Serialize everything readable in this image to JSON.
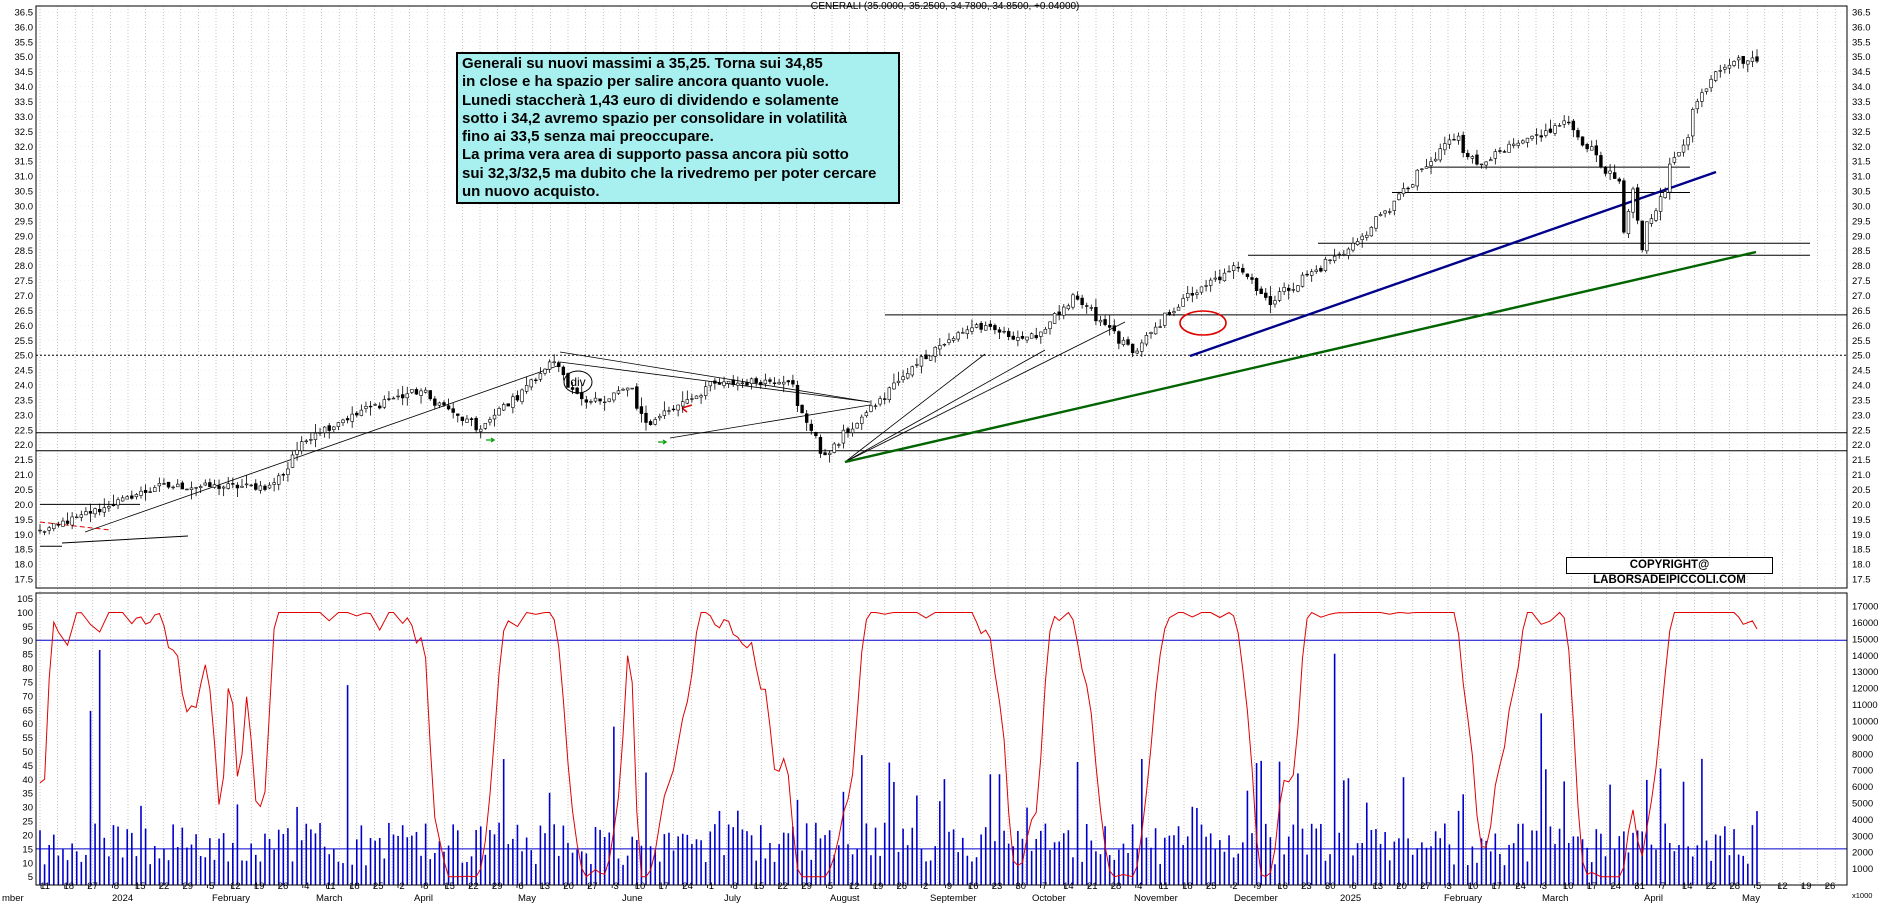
{
  "header_text": "GENERALI (35.0000, 35.2500, 34.7800, 34.8500, +0.04000)",
  "annotation_lines": [
    "Generali su nuovi massimi a 35,25. Torna sui 34,85",
    "in close e ha spazio per salire ancora quanto vuole.",
    "Lunedi staccherà 1,43 euro di dividendo e solamente",
    "sotto i 34,2 avremo spazio per consolidare in volatilità",
    "fino ai 33,5 senza mai preoccupare.",
    "La prima vera area di supporto passa ancora più sotto",
    "sui 32,3/32,5 ma dubito che la rivedremo per poter cercare",
    "un nuovo acquisto."
  ],
  "copyright": "COPYRIGHT@ LABORSADEIPICCOLI.COM",
  "div_label": "div",
  "colors": {
    "up_candle": "#000000",
    "down_candle": "#000000",
    "oscillator": "#e00000",
    "volume": "#0000cc",
    "trend_blue": "#00008b",
    "trend_green": "#006400",
    "grid": "#a0a0a0",
    "annotation_bg": "#a8f0f0"
  },
  "chart_data": {
    "type": "candlestick",
    "price_axis": {
      "ticks": [
        "36.5",
        "36.0",
        "35.5",
        "35.0",
        "34.5",
        "34.0",
        "33.5",
        "33.0",
        "32.5",
        "32.0",
        "31.5",
        "31.0",
        "30.5",
        "30.0",
        "29.5",
        "29.0",
        "28.5",
        "28.0",
        "27.5",
        "27.0",
        "26.5",
        "26.0",
        "25.5",
        "25.0",
        "24.5",
        "24.0",
        "23.5",
        "23.0",
        "22.5",
        "22.0",
        "21.5",
        "21.0",
        "20.5",
        "20.0",
        "19.5",
        "19.0",
        "18.5",
        "18.0",
        "17.5"
      ],
      "range": [
        17.2,
        36.7
      ],
      "side": "both"
    },
    "oscillator_axis": {
      "ticks": [
        "105",
        "100",
        "95",
        "90",
        "85",
        "80",
        "75",
        "70",
        "65",
        "60",
        "55",
        "50",
        "45",
        "40",
        "35",
        "30",
        "25",
        "20",
        "15",
        "10",
        "5"
      ],
      "range": [
        2,
        107
      ],
      "upper_line": 90,
      "lower_line": 15
    },
    "volume_axis": {
      "ticks": [
        "17000",
        "16000",
        "15000",
        "14000",
        "13000",
        "12000",
        "11000",
        "10000",
        "9000",
        "8000",
        "7000",
        "6000",
        "5000",
        "4000",
        "3000",
        "2000",
        "1000"
      ],
      "range": [
        0,
        17800
      ],
      "unit_label": "x1000"
    },
    "date_ticks": [
      "11",
      "18",
      "27",
      "8",
      "15",
      "22",
      "29",
      "5",
      "12",
      "19",
      "26",
      "4",
      "11",
      "18",
      "25",
      "2",
      "8",
      "15",
      "22",
      "29",
      "6",
      "13",
      "20",
      "27",
      "3",
      "10",
      "17",
      "24",
      "1",
      "8",
      "15",
      "22",
      "29",
      "5",
      "12",
      "19",
      "26",
      "2",
      "9",
      "16",
      "23",
      "30",
      "7",
      "14",
      "21",
      "28",
      "4",
      "11",
      "18",
      "25",
      "2",
      "9",
      "16",
      "23",
      "30",
      "6",
      "13",
      "20",
      "27",
      "3",
      "10",
      "17",
      "24",
      "3",
      "10",
      "17",
      "24",
      "31",
      "7",
      "14",
      "22",
      "28",
      "5",
      "12",
      "19",
      "26"
    ],
    "month_labels": [
      "mber",
      "2024",
      "February",
      "March",
      "April",
      "May",
      "June",
      "July",
      "August",
      "September",
      "October",
      "November",
      "December",
      "2025",
      "February",
      "March",
      "April",
      "May"
    ],
    "horizontal_levels": [
      22.4,
      21.8,
      26.35,
      25.0,
      31.3,
      30.45,
      28.75,
      28.35,
      20.0,
      18.6
    ],
    "anchors": [
      {
        "date": "2023-12-11",
        "close": 19.1
      },
      {
        "date": "2024-01-15",
        "close": 20.6
      },
      {
        "date": "2024-02-19",
        "close": 20.6
      },
      {
        "date": "2024-03-01",
        "close": 22.3
      },
      {
        "date": "2024-03-25",
        "close": 23.5
      },
      {
        "date": "2024-04-04",
        "close": 23.8
      },
      {
        "date": "2024-04-22",
        "close": 22.5
      },
      {
        "date": "2024-05-15",
        "close": 24.8
      },
      {
        "date": "2024-05-24",
        "close": 23.3
      },
      {
        "date": "2024-06-07",
        "close": 23.9
      },
      {
        "date": "2024-06-12",
        "close": 22.7
      },
      {
        "date": "2024-07-02",
        "close": 24.0
      },
      {
        "date": "2024-07-25",
        "close": 24.2
      },
      {
        "date": "2024-08-05",
        "close": 21.6
      },
      {
        "date": "2024-09-05",
        "close": 25.0
      },
      {
        "date": "2024-09-20",
        "close": 26.0
      },
      {
        "date": "2024-10-07",
        "close": 25.5
      },
      {
        "date": "2024-10-21",
        "close": 26.9
      },
      {
        "date": "2024-11-08",
        "close": 25.1
      },
      {
        "date": "2024-11-22",
        "close": 26.8
      },
      {
        "date": "2024-12-10",
        "close": 28.0
      },
      {
        "date": "2024-12-19",
        "close": 26.8
      },
      {
        "date": "2025-01-15",
        "close": 28.8
      },
      {
        "date": "2025-02-14",
        "close": 32.4
      },
      {
        "date": "2025-02-20",
        "close": 31.4
      },
      {
        "date": "2025-03-20",
        "close": 32.8
      },
      {
        "date": "2025-04-04",
        "close": 30.8
      },
      {
        "date": "2025-04-07",
        "close": 29.0
      },
      {
        "date": "2025-04-09",
        "close": 30.5
      },
      {
        "date": "2025-04-11",
        "close": 28.6
      },
      {
        "date": "2025-05-02",
        "close": 34.3
      },
      {
        "date": "2025-05-09",
        "close": 34.9
      },
      {
        "date": "2025-05-16",
        "close": 34.85
      }
    ],
    "last_bar": {
      "open": 35.0,
      "high": 35.25,
      "low": 34.78,
      "close": 34.85
    }
  }
}
